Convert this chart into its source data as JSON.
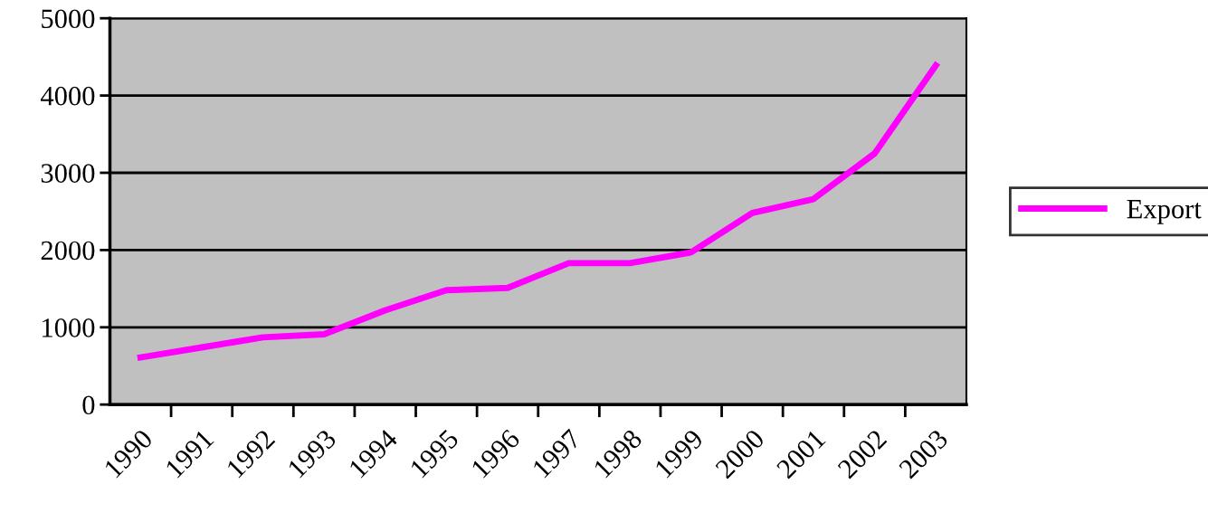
{
  "chart_data": {
    "type": "line",
    "categories": [
      "1990",
      "1991",
      "1992",
      "1993",
      "1994",
      "1995",
      "1996",
      "1997",
      "1998",
      "1999",
      "2000",
      "2001",
      "2002",
      "2003"
    ],
    "series": [
      {
        "name": "Export",
        "color": "#ff00ff",
        "values": [
          610,
          740,
          870,
          910,
          1220,
          1480,
          1510,
          1830,
          1830,
          1970,
          2480,
          2660,
          3250,
          4390
        ]
      }
    ],
    "ylim": [
      0,
      5000
    ],
    "yticks": [
      0,
      1000,
      2000,
      3000,
      4000,
      5000
    ],
    "grid": "y",
    "legend": "right",
    "marker": "none",
    "line_style": "solid"
  }
}
